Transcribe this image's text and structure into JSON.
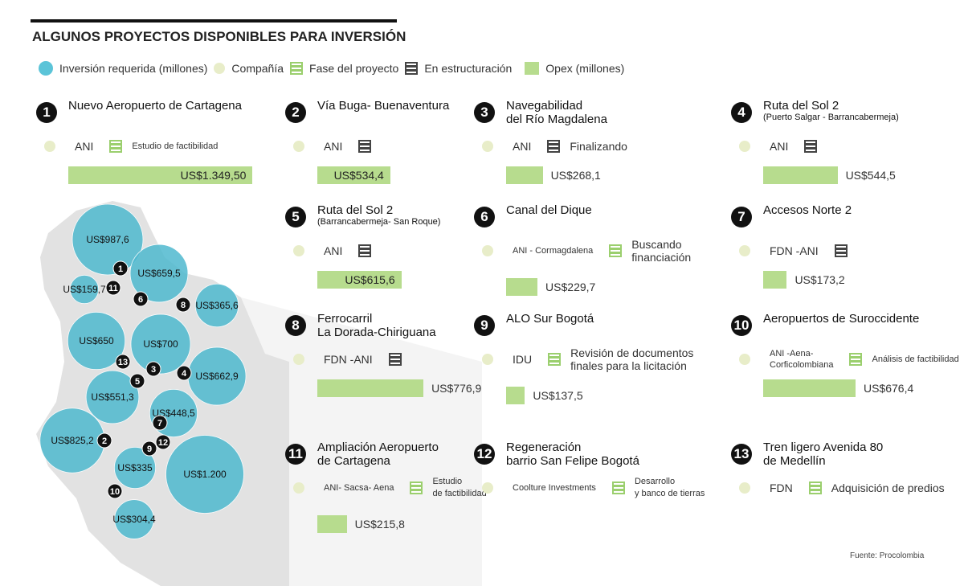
{
  "title": "ALGUNOS PROYECTOS DISPONIBLES PARA INVERSIÓN",
  "legend": [
    "Inversión requerida (millones)",
    "Compañía",
    "Fase del proyecto",
    "En estructuración",
    "Opex (millones)"
  ],
  "projects": [
    {
      "number": "1",
      "name": [
        "Nuevo Aeropuerto de Cartagena"
      ],
      "company": [
        "ANI"
      ],
      "phase": [
        "Estudio de factibilidad"
      ],
      "opex": {
        "value": 1349.5,
        "label": "US$1.349,50"
      }
    },
    {
      "number": "2",
      "name": [
        "Vía Buga- Buenaventura"
      ],
      "company": [
        "ANI"
      ],
      "opex": {
        "value": 534.4,
        "label": "US$534,4"
      }
    },
    {
      "number": "3",
      "name": [
        "Navegabilidad",
        "del Río Magdalena"
      ],
      "company": [
        "ANI"
      ],
      "phase": [
        "Finalizando"
      ],
      "opex": {
        "value": 268.1,
        "label": "US$268,1"
      }
    },
    {
      "number": "4",
      "name": [
        "Ruta del Sol 2"
      ],
      "subtitle": "(Puerto Salgar - Barrancabermeja)",
      "company": [
        "ANI"
      ],
      "opex": {
        "value": 544.5,
        "label": "US$544,5"
      }
    },
    {
      "number": "5",
      "name": [
        "Ruta del Sol 2"
      ],
      "subtitle": "(Barrancabermeja- San Roque)",
      "company": [
        "ANI"
      ],
      "opex": {
        "value": 615.6,
        "label": "US$615,6"
      }
    },
    {
      "number": "6",
      "name": [
        "Canal del Dique"
      ],
      "company": [
        "ANI - Cormagdalena"
      ],
      "phase": [
        "Buscando",
        "financiación"
      ],
      "opex": {
        "value": 229.7,
        "label": "US$229,7"
      }
    },
    {
      "number": "7",
      "name": [
        "Accesos Norte 2"
      ],
      "company": [
        "FDN -ANI"
      ],
      "opex": {
        "value": 173.2,
        "label": "US$173,2"
      }
    },
    {
      "number": "8",
      "name": [
        "Ferrocarril",
        "La Dorada-Chiriguana"
      ],
      "company": [
        "FDN -ANI"
      ],
      "opex": {
        "value": 776.9,
        "label": "US$776,9"
      }
    },
    {
      "number": "9",
      "name": [
        "ALO Sur Bogotá"
      ],
      "company": [
        "IDU"
      ],
      "phase": [
        "Revisión de documentos",
        "finales para la licitación"
      ],
      "opex": {
        "value": 137.5,
        "label": "US$137,5"
      }
    },
    {
      "number": "10",
      "name": [
        "Aeropuertos de Suroccidente"
      ],
      "company": [
        "ANI -Aena-",
        "Corficolombiana"
      ],
      "phase": [
        "Análisis de factibilidad"
      ],
      "opex": {
        "value": 676.4,
        "label": "US$676,4"
      }
    },
    {
      "number": "11",
      "name": [
        "Ampliación Aeropuerto",
        "de Cartagena"
      ],
      "company": [
        "ANI- Sacsa- Aena"
      ],
      "phase": [
        "Estudio",
        "de factibilidad"
      ],
      "opex": {
        "value": 215.8,
        "label": "US$215,8"
      }
    },
    {
      "number": "12",
      "name": [
        "Regeneración",
        "barrio San Felipe Bogotá"
      ],
      "company": [
        "Coolture Investments"
      ],
      "phase": [
        "Desarrollo",
        "y banco de tierras"
      ]
    },
    {
      "number": "13",
      "name": [
        "Tren ligero Avenida 80",
        "de Medellín"
      ],
      "company": [
        "FDN"
      ],
      "phase": [
        "Adquisición de predios"
      ]
    }
  ],
  "map_bubbles": [
    {
      "value": 987.6,
      "label": "US$987,6"
    },
    {
      "value": 659.5,
      "label": "US$659,5"
    },
    {
      "value": 159.7,
      "label": "US$159,7"
    },
    {
      "value": 365.6,
      "label": "US$365,6"
    },
    {
      "value": 650,
      "label": "US$650"
    },
    {
      "value": 700,
      "label": "US$700"
    },
    {
      "value": 662.9,
      "label": "US$662,9"
    },
    {
      "value": 551.3,
      "label": "US$551,3"
    },
    {
      "value": 448.5,
      "label": "US$448,5"
    },
    {
      "value": 825.2,
      "label": "US$825,2"
    },
    {
      "value": 335,
      "label": "US$335"
    },
    {
      "value": 1200,
      "label": "US$1.200"
    },
    {
      "value": 304.4,
      "label": "US$304,4"
    }
  ],
  "source": "Fuente: Procolombia"
}
